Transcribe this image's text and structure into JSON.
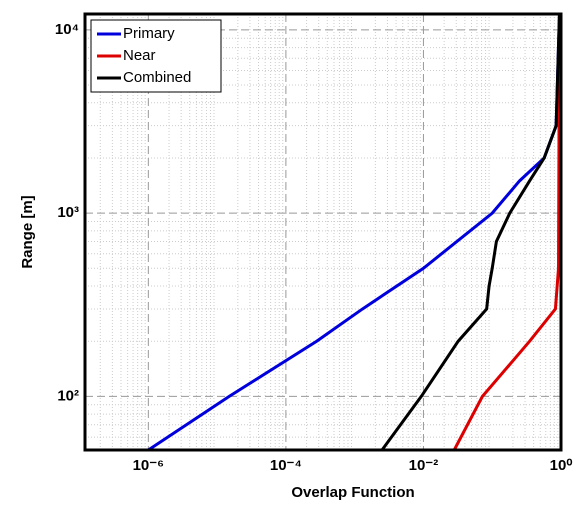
{
  "chart_data": {
    "type": "line",
    "xlabel": "Overlap Function",
    "ylabel": "Range [m]",
    "xscale": "log",
    "yscale": "log",
    "grid": true,
    "legend": "upper left",
    "xlim": [
      1.2e-07,
      1
    ],
    "ylim": [
      51,
      12200
    ],
    "xticks": [
      {
        "value": 1e-06,
        "label": "10⁻⁶"
      },
      {
        "value": 0.0001,
        "label": "10⁻⁴"
      },
      {
        "value": 0.01,
        "label": "10⁻²"
      },
      {
        "value": 1,
        "label": "10⁰"
      }
    ],
    "yticks": [
      {
        "value": 100,
        "label": "10²"
      },
      {
        "value": 1000,
        "label": "10³"
      },
      {
        "value": 10000,
        "label": "10⁴"
      }
    ],
    "series": [
      {
        "name": "Primary",
        "color": "#0000dd",
        "x": [
          1e-06,
          1.5e-05,
          0.00028,
          0.0013,
          0.01,
          0.1,
          0.25,
          0.57,
          0.85,
          0.95
        ],
        "values": [
          51,
          100,
          200,
          300,
          500,
          1000,
          1500,
          2000,
          3000,
          12200
        ]
      },
      {
        "name": "Near",
        "color": "#dd0000",
        "x": [
          0.028,
          0.072,
          0.35,
          0.83,
          0.92,
          0.95
        ],
        "values": [
          51,
          100,
          200,
          300,
          500,
          12200
        ]
      },
      {
        "name": "Combined",
        "color": "#000000",
        "x": [
          0.0025,
          0.0093,
          0.032,
          0.083,
          0.09,
          0.1,
          0.115,
          0.18,
          0.35,
          0.57,
          0.85,
          0.95
        ],
        "values": [
          51,
          100,
          200,
          300,
          400,
          500,
          700,
          1000,
          1500,
          2000,
          3000,
          12200
        ]
      }
    ]
  }
}
